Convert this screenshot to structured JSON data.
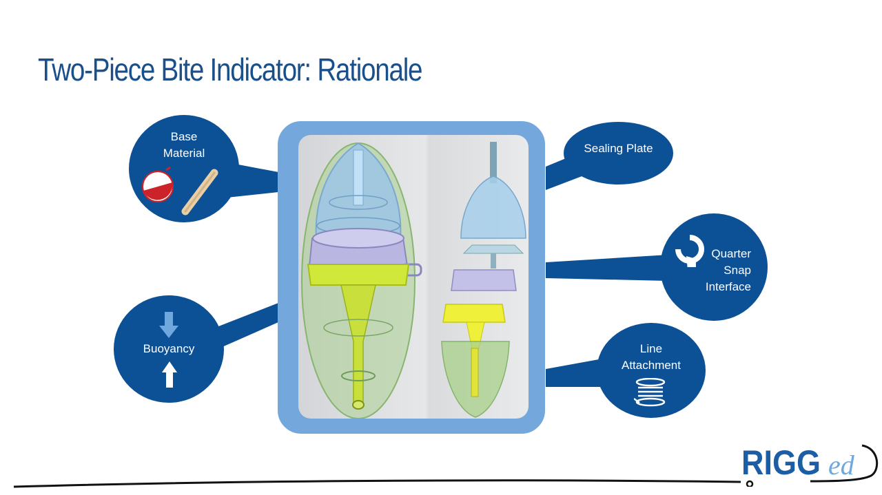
{
  "slide": {
    "title": "Two-Piece Bite Indicator: Rationale"
  },
  "colors": {
    "title": "#1b4f8a",
    "bubble": "#0c5196",
    "frame": "#74a8dc",
    "logo_dark": "#1b5ea6",
    "logo_light": "#6ea8de"
  },
  "callouts": {
    "base_material": {
      "line1": "Base",
      "line2": "Material",
      "icons": [
        "bobber-icon",
        "dowel-icon"
      ]
    },
    "buoyancy": {
      "label": "Buoyancy",
      "icons": [
        "arrow-down-icon",
        "arrow-up-icon"
      ]
    },
    "sealing_plate": {
      "label": "Sealing Plate"
    },
    "quarter_snap": {
      "line1": "Quarter",
      "line2": "Snap",
      "line3": "Interface",
      "icon": "rotate-arrow-icon"
    },
    "line_attachment": {
      "line1": "Line",
      "line2": "Attachment",
      "icon": "spool-icon"
    }
  },
  "figure": {
    "description_icon": "exploded-3d-render"
  },
  "logo": {
    "part1": "RIGG",
    "part2": "ed"
  }
}
